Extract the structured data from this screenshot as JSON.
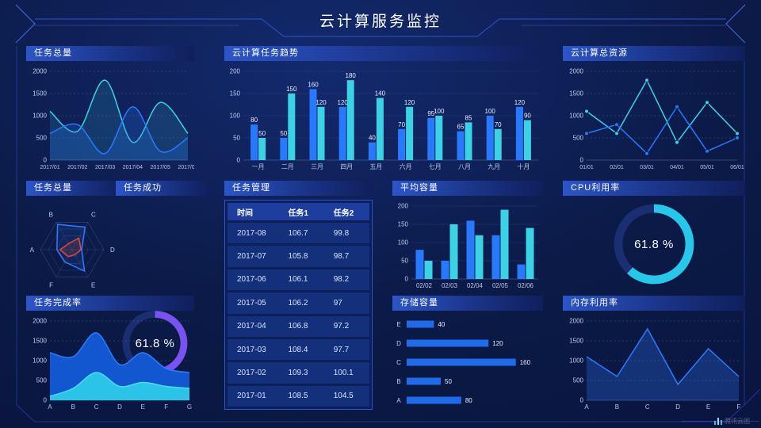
{
  "header": {
    "title": "云计算服务监控"
  },
  "watermark": {
    "text": "腾讯云图"
  },
  "colors": {
    "blue": "#2979ff",
    "cyan": "#3bd2e5",
    "purple": "#7a52f4",
    "donut_cyan": "#27c7e9",
    "red": "#e8472b",
    "background": "#0b1a47",
    "accent_line": "#2d55cc"
  },
  "panels": {
    "task_total_line": {
      "title": "任务总量"
    },
    "task_trend": {
      "title": "云计算任务趋势"
    },
    "cloud_resources": {
      "title": "云计算总资源"
    },
    "task_total_radar": {
      "title": "任务总量"
    },
    "task_success": {
      "title": "任务成功",
      "value": "61.8 %"
    },
    "task_manage": {
      "title": "任务管理",
      "columns": [
        "时间",
        "任务1",
        "任务2"
      ],
      "rows": [
        [
          "2017-08",
          "106.7",
          "99.8"
        ],
        [
          "2017-07",
          "105.8",
          "98.7"
        ],
        [
          "2017-06",
          "106.1",
          "98.2"
        ],
        [
          "2017-05",
          "106.2",
          "97"
        ],
        [
          "2017-04",
          "106.8",
          "97.2"
        ],
        [
          "2017-03",
          "108.4",
          "97.7"
        ],
        [
          "2017-02",
          "109.3",
          "100.1"
        ],
        [
          "2017-01",
          "108.5",
          "104.5"
        ]
      ]
    },
    "avg_capacity": {
      "title": "平均容量"
    },
    "cpu": {
      "title": "CPU利用率",
      "value": "61.8 %"
    },
    "completion": {
      "title": "任务完成率"
    },
    "storage": {
      "title": "存储容量"
    },
    "memory": {
      "title": "内存利用率"
    }
  },
  "chart_data": [
    {
      "id": "task-total-line",
      "type": "area",
      "x": [
        "2017/01",
        "2017/02",
        "2017/03",
        "2017/04",
        "2017/05",
        "2017/06"
      ],
      "ylim": [
        0,
        2000
      ],
      "yticks": [
        0,
        500,
        1000,
        1500,
        2000
      ],
      "series": [
        {
          "name": "cyan",
          "color": "#3bd2e5",
          "values": [
            1100,
            650,
            1800,
            400,
            1300,
            600
          ],
          "fill": 0.15
        },
        {
          "name": "blue",
          "color": "#2979ff",
          "values": [
            600,
            800,
            150,
            1200,
            200,
            500
          ],
          "fill": 0.22
        }
      ]
    },
    {
      "id": "task-trend",
      "type": "bar",
      "x": [
        "一月",
        "二月",
        "三月",
        "四月",
        "五月",
        "六月",
        "七月",
        "八月",
        "九月",
        "十月"
      ],
      "ylim": [
        0,
        200
      ],
      "yticks": [
        0,
        50,
        100,
        150,
        200
      ],
      "series": [
        {
          "name": "blue",
          "color": "#2979ff",
          "values": [
            80,
            50,
            160,
            120,
            40,
            70,
            95,
            65,
            100,
            120
          ]
        },
        {
          "name": "cyan",
          "color": "#3bd2e5",
          "values": [
            50,
            150,
            120,
            180,
            140,
            120,
            100,
            85,
            70,
            90
          ]
        }
      ]
    },
    {
      "id": "cloud-resources",
      "type": "line",
      "x": [
        "01/01",
        "02/01",
        "03/01",
        "04/01",
        "05/01",
        "06/01"
      ],
      "ylim": [
        0,
        2000
      ],
      "yticks": [
        0,
        500,
        1000,
        1500,
        2000
      ],
      "series": [
        {
          "name": "cyan",
          "color": "#3bd2e5",
          "values": [
            1100,
            600,
            1800,
            400,
            1300,
            600
          ]
        },
        {
          "name": "blue",
          "color": "#2979ff",
          "values": [
            600,
            800,
            150,
            1200,
            200,
            500
          ]
        }
      ]
    },
    {
      "id": "task-radar",
      "type": "radar",
      "axes": [
        "A",
        "B",
        "C",
        "D",
        "E",
        "F"
      ],
      "max": 100,
      "series": [
        {
          "name": "blue",
          "color": "#2f7bff",
          "values": [
            48,
            92,
            82,
            30,
            78,
            45
          ],
          "fill": 0.12
        },
        {
          "name": "red",
          "color": "#e8472b",
          "values": [
            38,
            22,
            42,
            28,
            18,
            25
          ],
          "fill": 0.15
        }
      ]
    },
    {
      "id": "task-success-donut",
      "type": "donut",
      "percent": 61.8,
      "color": "#7a52f4",
      "label": "61.8 %"
    },
    {
      "id": "avg-capacity",
      "type": "bar",
      "x": [
        "02/02",
        "02/03",
        "02/04",
        "02/05",
        "02/06"
      ],
      "ylim": [
        0,
        200
      ],
      "yticks": [
        0,
        50,
        100,
        150,
        200
      ],
      "series": [
        {
          "name": "blue",
          "color": "#2979ff",
          "values": [
            80,
            50,
            160,
            120,
            40
          ]
        },
        {
          "name": "cyan",
          "color": "#3bd2e5",
          "values": [
            50,
            150,
            120,
            190,
            140
          ]
        }
      ]
    },
    {
      "id": "cpu-donut",
      "type": "donut",
      "percent": 61.8,
      "color": "#27c7e9",
      "label": "61.8 %"
    },
    {
      "id": "completion",
      "type": "area",
      "x": [
        "A",
        "B",
        "C",
        "D",
        "E",
        "F",
        "G"
      ],
      "ylim": [
        0,
        2000
      ],
      "yticks": [
        0,
        500,
        1000,
        1500,
        2000
      ],
      "series": [
        {
          "name": "blue",
          "color": "#2f7bff",
          "values": [
            1200,
            1100,
            1700,
            900,
            1200,
            800,
            700
          ],
          "fillSolid": "#1257d0"
        },
        {
          "name": "cyan",
          "color": "#49dff2",
          "values": [
            100,
            300,
            700,
            350,
            450,
            350,
            300
          ],
          "fillSolid": "#2bc3e8"
        }
      ]
    },
    {
      "id": "storage",
      "type": "hbar",
      "categories": [
        "E",
        "D",
        "C",
        "B",
        "A"
      ],
      "values": [
        40,
        120,
        160,
        50,
        80
      ],
      "xmax": 165,
      "color": "#1f6ceb"
    },
    {
      "id": "memory",
      "type": "line",
      "x": [
        "A",
        "B",
        "C",
        "D",
        "E",
        "F"
      ],
      "ylim": [
        0,
        2000
      ],
      "yticks": [
        0,
        500,
        1000,
        1500,
        2000
      ],
      "series": [
        {
          "name": "blue",
          "color": "#2e7bff",
          "values": [
            1100,
            600,
            1800,
            400,
            1300,
            600
          ],
          "fill": 0.28
        }
      ]
    }
  ]
}
